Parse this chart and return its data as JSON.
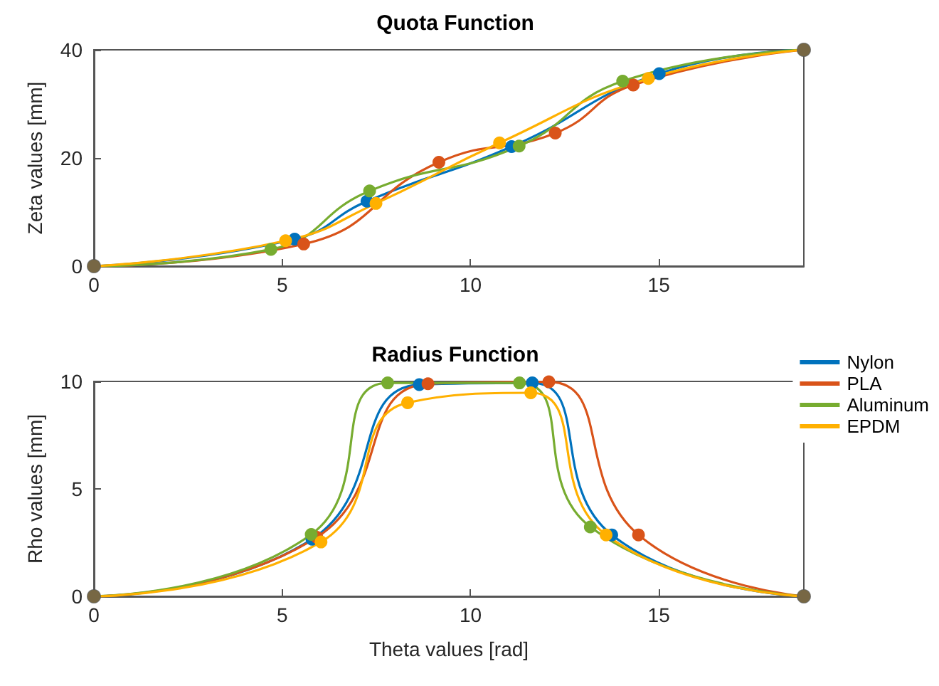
{
  "chart_data": [
    {
      "type": "line",
      "title": "Quota Function",
      "ylabel": "Zeta values [mm]",
      "xlim": [
        0,
        18.85
      ],
      "xticks": [
        0,
        5,
        10,
        15
      ],
      "ylim": [
        0,
        40
      ],
      "yticks": [
        0,
        20,
        40
      ],
      "grid": false,
      "legend": false,
      "marker": "circle",
      "line_style": "solid",
      "series": [
        {
          "color": "#0072bd",
          "x": [
            0,
            5.33,
            7.25,
            11.09,
            15.01,
            18.85
          ],
          "values": [
            0,
            5.0,
            12.0,
            22.1,
            35.6,
            40
          ]
        },
        {
          "color": "#d95319",
          "x": [
            0,
            5.57,
            9.16,
            12.25,
            14.32,
            18.85
          ],
          "values": [
            0,
            4.1,
            19.2,
            24.6,
            33.5,
            40
          ]
        },
        {
          "color": "#77ac30",
          "x": [
            0,
            4.7,
            7.32,
            11.29,
            14.04,
            18.85
          ],
          "values": [
            0,
            3.1,
            13.9,
            22.2,
            34.2,
            40
          ]
        },
        {
          "color": "#ffb000",
          "x": [
            0,
            5.09,
            7.49,
            10.77,
            14.72,
            18.85
          ],
          "values": [
            0,
            4.7,
            11.6,
            22.8,
            34.7,
            40
          ]
        },
        {
          "type": "scatter",
          "color": "#555555",
          "x": [
            0,
            18.85
          ],
          "values": [
            0,
            40
          ]
        }
      ]
    },
    {
      "type": "line",
      "title": "Radius Function",
      "xlabel": "Theta values [rad]",
      "ylabel": "Rho values [mm]",
      "xlim": [
        0,
        18.85
      ],
      "xticks": [
        0,
        5,
        10,
        15
      ],
      "ylim": [
        0,
        10
      ],
      "yticks": [
        0,
        5,
        10
      ],
      "grid": false,
      "legend": "right",
      "marker": "circle",
      "line_style": "solid",
      "series": [
        {
          "name": "Nylon",
          "color": "#0072bd",
          "x": [
            0,
            5.79,
            8.64,
            11.64,
            13.75,
            18.85
          ],
          "values": [
            0,
            2.66,
            9.85,
            9.93,
            2.86,
            0
          ]
        },
        {
          "name": "PLA",
          "color": "#d95319",
          "x": [
            0,
            5.92,
            8.87,
            12.08,
            14.46,
            18.85
          ],
          "values": [
            0,
            2.75,
            9.89,
            9.98,
            2.86,
            0
          ]
        },
        {
          "name": "Aluminum",
          "color": "#77ac30",
          "x": [
            0,
            5.77,
            7.8,
            11.3,
            13.18,
            18.85
          ],
          "values": [
            0,
            2.88,
            9.93,
            9.93,
            3.23,
            0
          ]
        },
        {
          "name": "EPDM",
          "color": "#ffb000",
          "x": [
            0,
            6.03,
            8.33,
            11.6,
            13.6,
            18.85
          ],
          "values": [
            0,
            2.53,
            9.01,
            9.47,
            2.86,
            0
          ]
        },
        {
          "type": "scatter",
          "color": "#555555",
          "x": [
            0,
            18.85
          ],
          "values": [
            0,
            0
          ]
        }
      ]
    }
  ]
}
